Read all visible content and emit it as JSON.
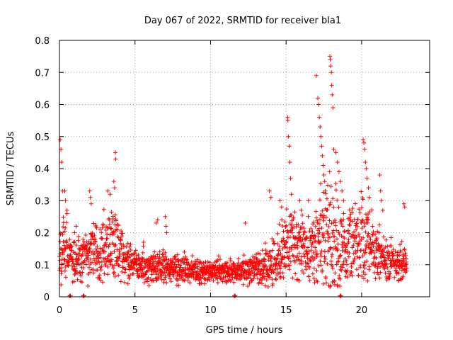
{
  "chart_data": {
    "type": "scatter",
    "title": "Day 067 of 2022, SRMTID for receiver bla1",
    "xlabel": "GPS time / hours",
    "ylabel": "SRMTID / TECUs",
    "xlim": [
      0,
      24.5
    ],
    "ylim": [
      0,
      0.8
    ],
    "x_ticks": [
      0,
      5,
      10,
      15,
      20
    ],
    "y_ticks": [
      0,
      0.1,
      0.2,
      0.3,
      0.4,
      0.5,
      0.6,
      0.7,
      0.8
    ],
    "x_tick_labels": [
      "0",
      "5",
      "10",
      "15",
      "20"
    ],
    "y_tick_labels": [
      "0",
      "0.1",
      "0.2",
      "0.3",
      "0.4",
      "0.5",
      "0.6",
      "0.7",
      "0.8"
    ],
    "grid": true,
    "marker": "+",
    "color": "#ff0000",
    "series": [
      {
        "name": "SRMTID",
        "profile_hours": [
          0,
          0.3,
          1,
          2,
          3,
          3.7,
          4.5,
          6,
          7,
          8,
          9,
          10,
          11,
          12,
          13,
          14,
          14.7,
          15.3,
          16,
          17,
          17.5,
          18,
          19,
          20,
          20.5,
          21,
          22,
          23
        ],
        "profile_median": [
          0.15,
          0.14,
          0.12,
          0.13,
          0.16,
          0.18,
          0.11,
          0.09,
          0.09,
          0.085,
          0.08,
          0.08,
          0.08,
          0.085,
          0.09,
          0.1,
          0.13,
          0.18,
          0.16,
          0.15,
          0.2,
          0.17,
          0.15,
          0.18,
          0.17,
          0.13,
          0.11,
          0.1
        ],
        "profile_spread": [
          0.1,
          0.08,
          0.05,
          0.06,
          0.08,
          0.08,
          0.05,
          0.04,
          0.04,
          0.035,
          0.03,
          0.03,
          0.03,
          0.03,
          0.04,
          0.05,
          0.07,
          0.08,
          0.08,
          0.08,
          0.15,
          0.15,
          0.08,
          0.1,
          0.09,
          0.07,
          0.05,
          0.04
        ],
        "peaks": [
          {
            "x": 0.05,
            "y": 0.49
          },
          {
            "x": 0.1,
            "y": 0.46
          },
          {
            "x": 0.15,
            "y": 0.42
          },
          {
            "x": 0.2,
            "y": 0.33
          },
          {
            "x": 0.35,
            "y": 0.33
          },
          {
            "x": 0.4,
            "y": 0.3
          },
          {
            "x": 0.5,
            "y": 0.27
          },
          {
            "x": 1.0,
            "y": 0.2
          },
          {
            "x": 1.1,
            "y": 0.22
          },
          {
            "x": 2.0,
            "y": 0.33
          },
          {
            "x": 2.05,
            "y": 0.31
          },
          {
            "x": 2.1,
            "y": 0.29
          },
          {
            "x": 3.2,
            "y": 0.33
          },
          {
            "x": 3.35,
            "y": 0.32
          },
          {
            "x": 3.6,
            "y": 0.36
          },
          {
            "x": 3.65,
            "y": 0.34
          },
          {
            "x": 3.7,
            "y": 0.45
          },
          {
            "x": 3.72,
            "y": 0.43
          },
          {
            "x": 6.4,
            "y": 0.23
          },
          {
            "x": 6.5,
            "y": 0.24
          },
          {
            "x": 7.0,
            "y": 0.25
          },
          {
            "x": 7.05,
            "y": 0.22
          },
          {
            "x": 7.1,
            "y": 0.2
          },
          {
            "x": 12.3,
            "y": 0.23
          },
          {
            "x": 13.9,
            "y": 0.33
          },
          {
            "x": 14.0,
            "y": 0.31
          },
          {
            "x": 14.6,
            "y": 0.3
          },
          {
            "x": 14.7,
            "y": 0.28
          },
          {
            "x": 15.1,
            "y": 0.56
          },
          {
            "x": 15.12,
            "y": 0.55
          },
          {
            "x": 15.15,
            "y": 0.5
          },
          {
            "x": 15.2,
            "y": 0.47
          },
          {
            "x": 15.25,
            "y": 0.42
          },
          {
            "x": 15.3,
            "y": 0.37
          },
          {
            "x": 15.35,
            "y": 0.32
          },
          {
            "x": 15.9,
            "y": 0.3
          },
          {
            "x": 16.0,
            "y": 0.27
          },
          {
            "x": 17.0,
            "y": 0.69
          },
          {
            "x": 17.1,
            "y": 0.62
          },
          {
            "x": 17.15,
            "y": 0.6
          },
          {
            "x": 17.2,
            "y": 0.56
          },
          {
            "x": 17.25,
            "y": 0.53
          },
          {
            "x": 17.3,
            "y": 0.5
          },
          {
            "x": 17.35,
            "y": 0.47
          },
          {
            "x": 17.4,
            "y": 0.44
          },
          {
            "x": 17.45,
            "y": 0.41
          },
          {
            "x": 17.5,
            "y": 0.38
          },
          {
            "x": 17.55,
            "y": 0.36
          },
          {
            "x": 17.6,
            "y": 0.33
          },
          {
            "x": 17.9,
            "y": 0.75
          },
          {
            "x": 17.92,
            "y": 0.74
          },
          {
            "x": 17.95,
            "y": 0.72
          },
          {
            "x": 18.0,
            "y": 0.7
          },
          {
            "x": 18.02,
            "y": 0.66
          },
          {
            "x": 18.05,
            "y": 0.63
          },
          {
            "x": 18.1,
            "y": 0.59
          },
          {
            "x": 18.15,
            "y": 0.46
          },
          {
            "x": 18.3,
            "y": 0.45
          },
          {
            "x": 18.4,
            "y": 0.42
          },
          {
            "x": 18.5,
            "y": 0.39
          },
          {
            "x": 18.6,
            "y": 0.36
          },
          {
            "x": 18.7,
            "y": 0.33
          },
          {
            "x": 18.8,
            "y": 0.3
          },
          {
            "x": 20.1,
            "y": 0.49
          },
          {
            "x": 20.15,
            "y": 0.48
          },
          {
            "x": 20.2,
            "y": 0.46
          },
          {
            "x": 20.25,
            "y": 0.42
          },
          {
            "x": 20.3,
            "y": 0.4
          },
          {
            "x": 20.35,
            "y": 0.37
          },
          {
            "x": 20.45,
            "y": 0.34
          },
          {
            "x": 20.5,
            "y": 0.31
          },
          {
            "x": 21.2,
            "y": 0.38
          },
          {
            "x": 21.25,
            "y": 0.33
          },
          {
            "x": 21.3,
            "y": 0.3
          },
          {
            "x": 21.4,
            "y": 0.27
          },
          {
            "x": 22.8,
            "y": 0.29
          },
          {
            "x": 22.85,
            "y": 0.28
          }
        ],
        "zero_points": [
          0.7,
          1.6,
          11.6,
          18.6
        ]
      }
    ]
  }
}
